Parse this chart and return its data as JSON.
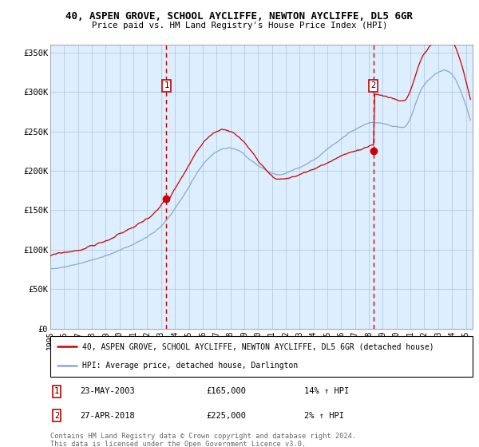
{
  "title": "40, ASPEN GROVE, SCHOOL AYCLIFFE, NEWTON AYCLIFFE, DL5 6GR",
  "subtitle": "Price paid vs. HM Land Registry's House Price Index (HPI)",
  "legend_red": "40, ASPEN GROVE, SCHOOL AYCLIFFE, NEWTON AYCLIFFE, DL5 6GR (detached house)",
  "legend_blue": "HPI: Average price, detached house, Darlington",
  "annotation1_date": "23-MAY-2003",
  "annotation1_price": "£165,000",
  "annotation1_hpi": "14% ↑ HPI",
  "annotation1_year": 2003.38,
  "annotation1_value": 165000,
  "annotation2_date": "27-APR-2018",
  "annotation2_price": "£225,000",
  "annotation2_hpi": "2% ↑ HPI",
  "annotation2_year": 2018.32,
  "annotation2_value": 225000,
  "ymin": 0,
  "ymax": 360000,
  "xmin": 1995.0,
  "xmax": 2025.5,
  "yticks": [
    0,
    50000,
    100000,
    150000,
    200000,
    250000,
    300000,
    350000
  ],
  "ytick_labels": [
    "£0",
    "£50K",
    "£100K",
    "£150K",
    "£200K",
    "£250K",
    "£300K",
    "£350K"
  ],
  "xticks": [
    1995,
    1996,
    1997,
    1998,
    1999,
    2000,
    2001,
    2002,
    2003,
    2004,
    2005,
    2006,
    2007,
    2008,
    2009,
    2010,
    2011,
    2012,
    2013,
    2014,
    2015,
    2016,
    2017,
    2018,
    2019,
    2020,
    2021,
    2022,
    2023,
    2024,
    2025
  ],
  "red_color": "#cc0000",
  "blue_color": "#88aacc",
  "bg_color": "#ddeeff",
  "grid_color": "#b0c4d8",
  "vline_color": "#cc0000",
  "box_color": "#cc0000",
  "footnote": "Contains HM Land Registry data © Crown copyright and database right 2024.\nThis data is licensed under the Open Government Licence v3.0.",
  "fig_width": 6.0,
  "fig_height": 5.6
}
